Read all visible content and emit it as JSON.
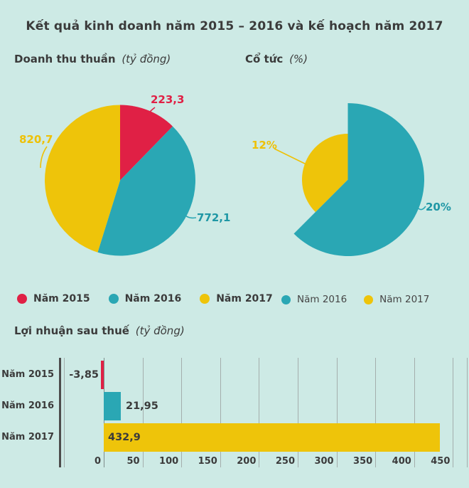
{
  "page_title": "Kết quả kinh doanh năm 2015 – 2016 và kế hoạch năm 2017",
  "colors": {
    "background": "#cdeae5",
    "red": "#e02045",
    "teal": "#2aa7b4",
    "yellow": "#eec40a",
    "text_dark": "#3b3b3b",
    "gridline": "#a4aeac",
    "axis_line": "#4d4d4d"
  },
  "sections": {
    "revenue": {
      "heading": "Doanh thu thuần",
      "unit": "(tỷ đồng)"
    },
    "dividend": {
      "heading": "Cổ tức",
      "unit": "(%)"
    },
    "profit": {
      "heading": "Lợi nhuận sau thuế",
      "unit": "(tỷ đồng)"
    }
  },
  "legend_revenue": {
    "items": [
      {
        "label": "Năm 2015",
        "color": "#e02045"
      },
      {
        "label": "Năm 2016",
        "color": "#2aa7b4"
      },
      {
        "label": "Năm 2017",
        "color": "#eec40a"
      }
    ]
  },
  "legend_dividend": {
    "items": [
      {
        "label": "Năm 2016",
        "color": "#2aa7b4"
      },
      {
        "label": "Năm 2017",
        "color": "#eec40a"
      }
    ]
  },
  "chart_data": [
    {
      "type": "pie",
      "title": "Doanh thu thuần",
      "unit": "tỷ đồng",
      "labels": [
        "Năm 2015",
        "Năm 2016",
        "Năm 2017"
      ],
      "values": [
        223.3,
        772.1,
        820.7
      ],
      "value_labels": [
        "223,3",
        "772,1",
        "820,7"
      ],
      "colors": [
        "#e02045",
        "#2aa7b4",
        "#eec40a"
      ],
      "start_angle_deg": 0,
      "direction": "clockwise",
      "legend_position": "bottom"
    },
    {
      "type": "pie",
      "variant": "variable-radius",
      "title": "Cổ tức",
      "unit": "%",
      "labels": [
        "Năm 2016",
        "Năm 2017"
      ],
      "values": [
        20,
        12
      ],
      "value_labels": [
        "20%",
        "12%"
      ],
      "colors": [
        "#2aa7b4",
        "#eec40a"
      ],
      "start_angle_deg": 0,
      "direction": "clockwise",
      "legend_position": "bottom"
    },
    {
      "type": "bar",
      "orientation": "horizontal",
      "title": "Lợi nhuận sau thuế",
      "unit": "tỷ đồng",
      "categories": [
        "Năm 2015",
        "Năm 2016",
        "Năm 2017"
      ],
      "values": [
        -3.85,
        21.95,
        432.9
      ],
      "value_labels": [
        "-3,85",
        "21,95",
        "432,9"
      ],
      "colors": [
        "#e02045",
        "#2aa7b4",
        "#eec40a"
      ],
      "xticks": [
        0,
        50,
        100,
        150,
        200,
        250,
        300,
        350,
        400,
        450
      ],
      "xlim": [
        -50,
        470
      ],
      "grid": true
    }
  ]
}
